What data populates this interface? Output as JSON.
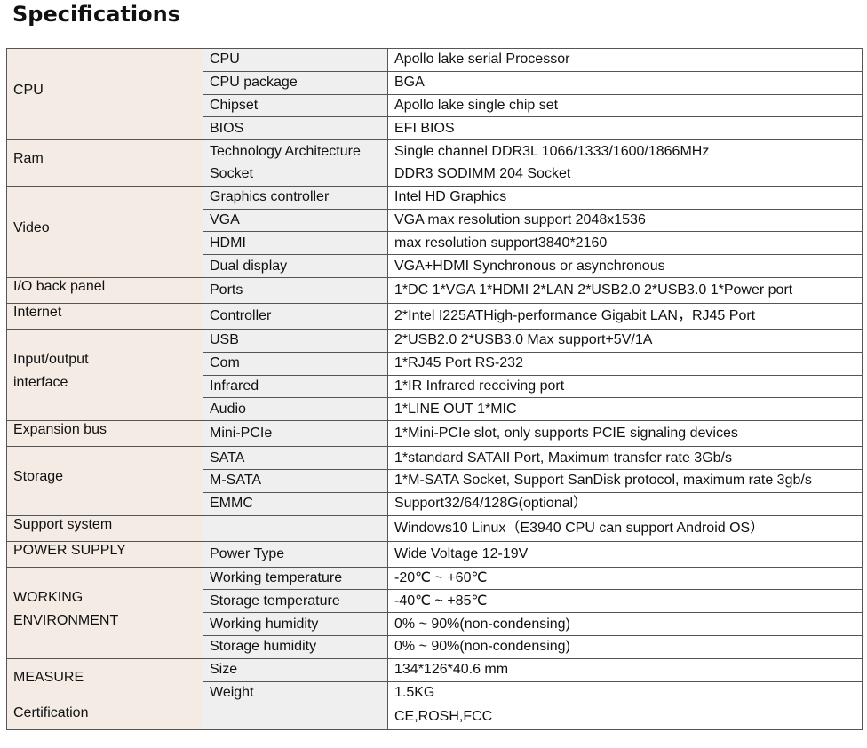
{
  "title": "Specifications",
  "groups": [
    {
      "name": "CPU",
      "rows": [
        {
          "item": "CPU",
          "value": "Apollo lake serial Processor"
        },
        {
          "item": "CPU package",
          "value": "BGA"
        },
        {
          "item": "Chipset",
          "value": "Apollo lake single chip set"
        },
        {
          "item": "BIOS",
          "value": "EFI BIOS"
        }
      ]
    },
    {
      "name": "Ram",
      "rows": [
        {
          "item": "Technology Architecture",
          "value": "Single channel DDR3L 1066/1333/1600/1866MHz"
        },
        {
          "item": "Socket",
          "value": "DDR3 SODIMM 204 Socket"
        }
      ]
    },
    {
      "name": "Video",
      "rows": [
        {
          "item": "Graphics controller",
          "value": "Intel HD Graphics"
        },
        {
          "item": "VGA",
          "value": "VGA max resolution support 2048x1536"
        },
        {
          "item": "HDMI",
          "value": "max resolution support3840*2160"
        },
        {
          "item": "Dual display",
          "value": "VGA+HDMI Synchronous or asynchronous"
        }
      ]
    },
    {
      "name": "I/O back panel",
      "rows": [
        {
          "item": "Ports",
          "value": "1*DC 1*VGA 1*HDMI 2*LAN 2*USB2.0 2*USB3.0 1*Power port"
        }
      ]
    },
    {
      "name": "Internet",
      "rows": [
        {
          "item": "Controller",
          "value": "2*Intel I225ATHigh-performance Gigabit LAN，RJ45 Port"
        }
      ]
    },
    {
      "name": "Input/output interface",
      "rows": [
        {
          "item": "USB",
          "value": "2*USB2.0 2*USB3.0 Max support+5V/1A"
        },
        {
          "item": "Com",
          "value": "1*RJ45 Port RS-232"
        },
        {
          "item": "Infrared",
          "value": "1*IR Infrared receiving port"
        },
        {
          "item": "Audio",
          "value": "1*LINE OUT 1*MIC"
        }
      ]
    },
    {
      "name": "Expansion bus",
      "rows": [
        {
          "item": "Mini-PCIe",
          "value": "1*Mini-PCIe slot, only supports PCIE signaling devices"
        }
      ]
    },
    {
      "name": "Storage",
      "rows": [
        {
          "item": "SATA",
          "value": "1*standard SATAII Port, Maximum transfer rate 3Gb/s"
        },
        {
          "item": "M-SATA",
          "value": "1*M-SATA Socket, Support SanDisk protocol, maximum rate 3gb/s"
        },
        {
          "item": "EMMC",
          "value": "Support32/64/128G(optional）"
        }
      ]
    },
    {
      "name": "Support system",
      "rows": [
        {
          "value": "Windows10 Linux（E3940 CPU can support Android OS）"
        }
      ]
    },
    {
      "name": "POWER SUPPLY",
      "rows": [
        {
          "item": "Power Type",
          "value": "Wide Voltage 12-19V"
        }
      ]
    },
    {
      "name": "WORKING ENVIRONMENT",
      "rows": [
        {
          "item": "Working temperature",
          "value": "-20℃ ~ +60℃"
        },
        {
          "item": "Storage temperature",
          "value": "-40℃ ~ +85℃"
        },
        {
          "item": "Working humidity",
          "value": "0% ~ 90%(non-condensing)"
        },
        {
          "item": "Storage humidity",
          "value": "0% ~ 90%(non-condensing)"
        }
      ]
    },
    {
      "name": "MEASURE",
      "rows": [
        {
          "item": "Size",
          "value": "134*126*40.6 mm"
        },
        {
          "item": "Weight",
          "value": "1.5KG"
        }
      ]
    },
    {
      "name": "Certification",
      "rows": [
        {
          "value": "CE,ROSH,FCC"
        }
      ]
    }
  ]
}
